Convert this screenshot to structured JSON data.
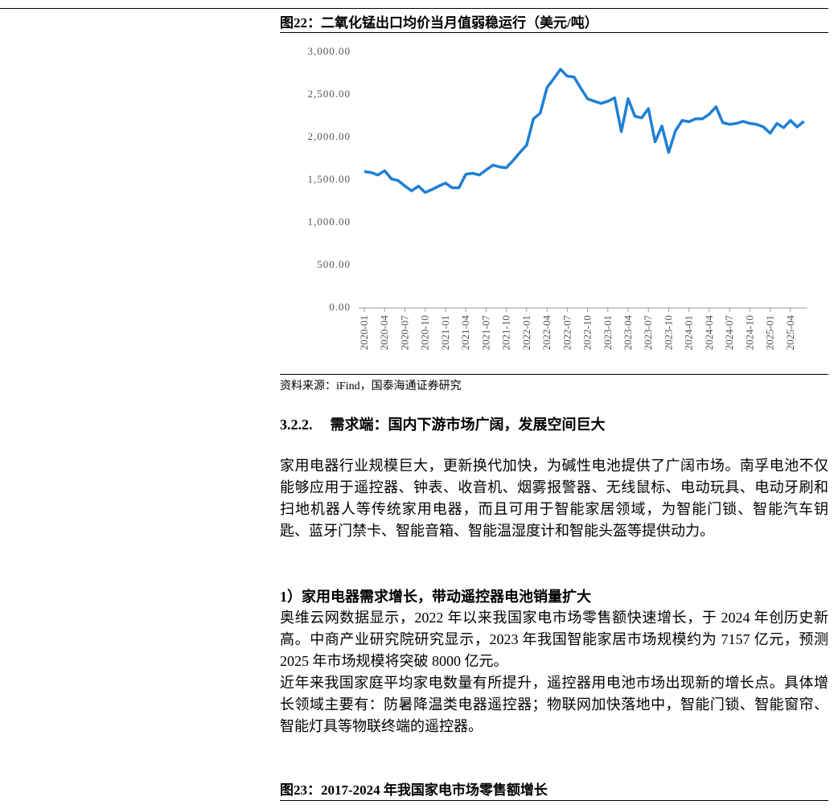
{
  "figure1": {
    "title": "图22：二氧化锰出口均价当月值弱稳运行（美元/吨）",
    "source": "资料来源：iFind，国泰海通证券研究"
  },
  "chart_data": {
    "type": "line",
    "categories": [
      "2020-01",
      null,
      null,
      "2020-04",
      null,
      null,
      "2020-07",
      null,
      null,
      "2020-10",
      null,
      null,
      "2021-01",
      null,
      null,
      "2021-04",
      null,
      null,
      "2021-07",
      null,
      null,
      "2021-10",
      null,
      null,
      "2022-01",
      null,
      null,
      "2022-04",
      null,
      null,
      "2022-07",
      null,
      null,
      "2022-10",
      null,
      null,
      "2023-01",
      null,
      null,
      "2023-04",
      null,
      null,
      "2023-07",
      null,
      null,
      "2023-10",
      null,
      null,
      "2024-01",
      null,
      null,
      "2024-04",
      null,
      null,
      "2024-07",
      null,
      null,
      "2024-10",
      null,
      null,
      "2025-01",
      null,
      null,
      "2025-04",
      null,
      null
    ],
    "values": [
      1600,
      1590,
      1560,
      1610,
      1515,
      1495,
      1430,
      1375,
      1430,
      1355,
      1390,
      1430,
      1465,
      1410,
      1410,
      1570,
      1580,
      1560,
      1620,
      1675,
      1655,
      1645,
      1730,
      1825,
      1910,
      2220,
      2285,
      2585,
      2690,
      2800,
      2720,
      2710,
      2580,
      2455,
      2425,
      2400,
      2425,
      2465,
      2070,
      2455,
      2250,
      2230,
      2340,
      1950,
      2135,
      1825,
      2080,
      2200,
      2185,
      2220,
      2220,
      2275,
      2360,
      2175,
      2155,
      2165,
      2190,
      2165,
      2155,
      2125,
      2050,
      2165,
      2115,
      2200,
      2125,
      2190
    ],
    "color": "#1f7fd6",
    "ylim": [
      0,
      3000
    ],
    "yticks": [
      {
        "value": 0,
        "label": "0.00"
      },
      {
        "value": 500,
        "label": "500.00"
      },
      {
        "value": 1000,
        "label": "1,000.00"
      },
      {
        "value": 1500,
        "label": "1,500.00"
      },
      {
        "value": 2000,
        "label": "2,000.00"
      },
      {
        "value": 2500,
        "label": "2,500.00"
      },
      {
        "value": 3000,
        "label": "3,000.00"
      }
    ]
  },
  "section": {
    "number": "3.2.2.",
    "title": "需求端：国内下游市场广阔，发展空间巨大",
    "paragraphs": [
      "家用电器行业规模巨大，更新换代加快，为碱性电池提供了广阔市场。南孚电池不仅能够应用于遥控器、钟表、收音机、烟雾报警器、无线鼠标、电动玩具、电动牙刷和扫地机器人等传统家用电器，而且可用于智能家居领域，为智能门锁、智能汽车钥匙、蓝牙门禁卡、智能音箱、智能温湿度计和智能头盔等提供动力。"
    ]
  },
  "subsection": {
    "title": "1）家用电器需求增长，带动遥控器电池销量扩大",
    "paragraphs": [
      "奥维云网数据显示，2022 年以来我国家电市场零售额快速增长，于 2024 年创历史新高。中商产业研究院研究显示，2023 年我国智能家居市场规模约为 7157 亿元，预测 2025 年市场规模将突破 8000 亿元。",
      "近年来我国家庭平均家电数量有所提升，遥控器用电池市场出现新的增长点。具体增长领域主要有：防暑降温类电器遥控器；物联网加快落地中，智能门锁、智能窗帘、智能灯具等物联终端的遥控器。"
    ]
  },
  "figure2": {
    "title": "图23：2017-2024 年我国家电市场零售额增长"
  }
}
